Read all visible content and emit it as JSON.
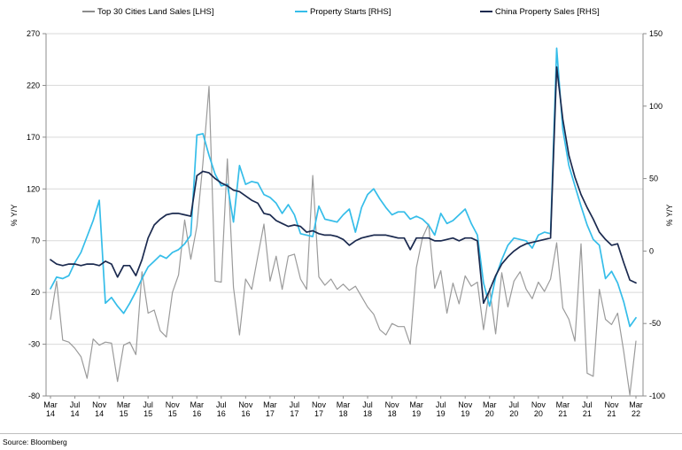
{
  "legend": [
    {
      "label": "Top 30 Cities Land Sales [LHS]",
      "color": "#8c8c8c"
    },
    {
      "label": "Property Starts [RHS]",
      "color": "#35bde9"
    },
    {
      "label": "China Property Sales [RHS]",
      "color": "#1b2a4f"
    }
  ],
  "axes": {
    "left_title": "% Y/Y",
    "right_title": "% Y/Y",
    "left_ticks": [
      270,
      220,
      170,
      120,
      70,
      20,
      -30,
      -80
    ],
    "right_ticks": [
      150,
      100,
      50,
      0,
      -50,
      -100
    ]
  },
  "source": "Source: Bloomberg",
  "colors": {
    "gray_line": "#9b9b9b",
    "cyan_line": "#35bde9",
    "navy_line": "#1b2a4f",
    "gridline": "#d9d9d9",
    "axis_line": "#8c8c8c",
    "tick_text": "#000000",
    "background": "#ffffff"
  },
  "chart_data": {
    "type": "line",
    "title": "",
    "xlabel": "",
    "ylabel_left": "% Y/Y",
    "ylabel_right": "% Y/Y",
    "left_range": [
      -80,
      270
    ],
    "right_range": [
      -100,
      150
    ],
    "grid": "horizontal",
    "legend_position": "top",
    "freq": "monthly",
    "x": [
      "Mar-14",
      "Apr-14",
      "May-14",
      "Jun-14",
      "Jul-14",
      "Aug-14",
      "Sep-14",
      "Oct-14",
      "Nov-14",
      "Dec-14",
      "Jan-15",
      "Feb-15",
      "Mar-15",
      "Apr-15",
      "May-15",
      "Jun-15",
      "Jul-15",
      "Aug-15",
      "Sep-15",
      "Oct-15",
      "Nov-15",
      "Dec-15",
      "Jan-16",
      "Feb-16",
      "Mar-16",
      "Apr-16",
      "May-16",
      "Jun-16",
      "Jul-16",
      "Aug-16",
      "Sep-16",
      "Oct-16",
      "Nov-16",
      "Dec-16",
      "Jan-17",
      "Feb-17",
      "Mar-17",
      "Apr-17",
      "May-17",
      "Jun-17",
      "Jul-17",
      "Aug-17",
      "Sep-17",
      "Oct-17",
      "Nov-17",
      "Dec-17",
      "Jan-18",
      "Feb-18",
      "Mar-18",
      "Apr-18",
      "May-18",
      "Jun-18",
      "Jul-18",
      "Aug-18",
      "Sep-18",
      "Oct-18",
      "Nov-18",
      "Dec-18",
      "Jan-19",
      "Feb-19",
      "Mar-19",
      "Apr-19",
      "May-19",
      "Jun-19",
      "Jul-19",
      "Aug-19",
      "Sep-19",
      "Oct-19",
      "Nov-19",
      "Dec-19",
      "Jan-20",
      "Feb-20",
      "Mar-20",
      "Apr-20",
      "May-20",
      "Jun-20",
      "Jul-20",
      "Aug-20",
      "Sep-20",
      "Oct-20",
      "Nov-20",
      "Dec-20",
      "Jan-21",
      "Feb-21",
      "Mar-21",
      "Apr-21",
      "May-21",
      "Jun-21",
      "Jul-21",
      "Aug-21",
      "Sep-21",
      "Oct-21",
      "Nov-21",
      "Dec-21",
      "Jan-22",
      "Feb-22",
      "Mar-22"
    ],
    "x_tick_every": 4,
    "x_ticks": [
      {
        "month": "Mar",
        "year": "14"
      },
      {
        "month": "Jul",
        "year": "14"
      },
      {
        "month": "Nov",
        "year": "14"
      },
      {
        "month": "Mar",
        "year": "15"
      },
      {
        "month": "Jul",
        "year": "15"
      },
      {
        "month": "Nov",
        "year": "15"
      },
      {
        "month": "Mar",
        "year": "16"
      },
      {
        "month": "Jul",
        "year": "16"
      },
      {
        "month": "Nov",
        "year": "16"
      },
      {
        "month": "Mar",
        "year": "17"
      },
      {
        "month": "Jul",
        "year": "17"
      },
      {
        "month": "Nov",
        "year": "17"
      },
      {
        "month": "Mar",
        "year": "18"
      },
      {
        "month": "Jul",
        "year": "18"
      },
      {
        "month": "Nov",
        "year": "18"
      },
      {
        "month": "Mar",
        "year": "19"
      },
      {
        "month": "Jul",
        "year": "19"
      },
      {
        "month": "Nov",
        "year": "19"
      },
      {
        "month": "Mar",
        "year": "20"
      },
      {
        "month": "Jul",
        "year": "20"
      },
      {
        "month": "Nov",
        "year": "20"
      },
      {
        "month": "Mar",
        "year": "21"
      },
      {
        "month": "Jul",
        "year": "21"
      },
      {
        "month": "Nov",
        "year": "21"
      },
      {
        "month": "Mar",
        "year": "22"
      }
    ],
    "series": [
      {
        "name": "Top 30 Cities Land Sales [LHS]",
        "axis": "left",
        "color": "#9b9b9b",
        "width": 1.2,
        "values": [
          -6,
          31,
          -26,
          -28,
          -34,
          -42,
          -63,
          -25,
          -31,
          -28,
          -29,
          -66,
          -31,
          -28,
          -40,
          40,
          0,
          3,
          -17,
          -23,
          20,
          37,
          90,
          52,
          84,
          145,
          219,
          31,
          30,
          149,
          25,
          -21,
          33,
          23,
          55,
          86,
          31,
          55,
          23,
          55,
          57,
          33,
          23,
          133,
          35,
          27,
          33,
          23,
          28,
          22,
          26,
          16,
          6,
          -1,
          -16,
          -21,
          -10,
          -13,
          -13,
          -30,
          44,
          73,
          86,
          24,
          41,
          0,
          29,
          9,
          36,
          26,
          30,
          -16,
          24,
          -20,
          39,
          6,
          31,
          40,
          23,
          14,
          30,
          21,
          33,
          68,
          5,
          -6,
          -27,
          67,
          -58,
          -61,
          23,
          -6,
          -11,
          0,
          -37,
          -79,
          -27
        ]
      },
      {
        "name": "Property Starts [RHS]",
        "axis": "right",
        "color": "#35bde9",
        "width": 1.7,
        "values": [
          -26,
          -18,
          -19,
          -17,
          -8,
          -1,
          10,
          21,
          35,
          -36,
          -32,
          -38,
          -43,
          -36,
          -28,
          -19,
          -11,
          -7,
          -3,
          -5,
          -1,
          1,
          5,
          11,
          80,
          81,
          66,
          53,
          45,
          46,
          20,
          59,
          46,
          48,
          47,
          39,
          37,
          33,
          26,
          32,
          25,
          12,
          11,
          10,
          31,
          22,
          21,
          20,
          25,
          29,
          13,
          30,
          39,
          43,
          36,
          30,
          25,
          27,
          27,
          22,
          24,
          22,
          18,
          11,
          26,
          19,
          21,
          25,
          29,
          19,
          11,
          -22,
          -38,
          -18,
          -6,
          4,
          9,
          8,
          7,
          2,
          11,
          13,
          12,
          140,
          84,
          59,
          45,
          31,
          18,
          8,
          4,
          -19,
          -14,
          -22,
          -35,
          -52,
          -46
        ]
      },
      {
        "name": "China Property Sales [RHS]",
        "axis": "right",
        "color": "#1b2a4f",
        "width": 1.7,
        "values": [
          -6,
          -9,
          -10,
          -9,
          -9,
          -10,
          -9,
          -9,
          -10,
          -7,
          -9,
          -18,
          -10,
          -10,
          -17,
          -6,
          9,
          18,
          22,
          25,
          26,
          26,
          25,
          24,
          52,
          55,
          54,
          50,
          47,
          45,
          42,
          41,
          38,
          35,
          33,
          26,
          25,
          21,
          19,
          17,
          18,
          17,
          13,
          14,
          12,
          11,
          11,
          10,
          8,
          4,
          7,
          9,
          10,
          11,
          11,
          11,
          10,
          9,
          9,
          1,
          9,
          9,
          9,
          7,
          7,
          8,
          9,
          7,
          9,
          9,
          7,
          -36,
          -27,
          -17,
          -9,
          -4,
          0,
          3,
          5,
          6,
          7,
          8,
          9,
          127,
          91,
          66,
          51,
          39,
          30,
          22,
          13,
          8,
          4,
          5,
          -8,
          -20,
          -22
        ]
      }
    ]
  }
}
